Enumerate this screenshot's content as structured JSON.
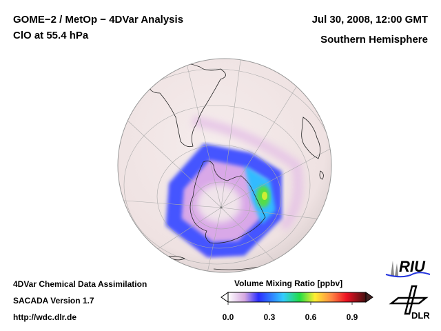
{
  "header": {
    "title": "GOME−2 / MetOp − 4DVar Analysis",
    "species": "ClO at 55.4 hPa",
    "datetime": "Jul 30, 2008, 12:00 GMT",
    "region": "Southern Hemisphere"
  },
  "footer": {
    "line1": "4DVar Chemical Data Assimilation",
    "line2": "SACADA Version 1.7",
    "url": "http://wdc.dlr.de"
  },
  "colorbar": {
    "title": "Volume Mixing Ratio [ppbv]",
    "ticks": [
      "0.0",
      "0.3",
      "0.6",
      "0.9"
    ],
    "range": [
      0.0,
      1.0
    ],
    "colors": [
      "#ffffff",
      "#e9b8ea",
      "#2a2cff",
      "#33ccff",
      "#22dd44",
      "#ffee33",
      "#ff3333",
      "#ee1122",
      "#331111"
    ]
  },
  "logos": {
    "riu": "RIU",
    "dlr": "DLR"
  }
}
